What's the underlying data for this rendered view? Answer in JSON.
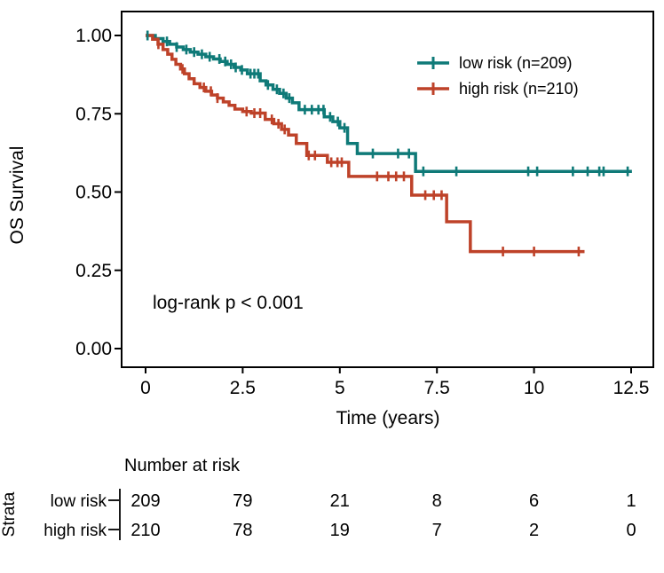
{
  "colors": {
    "low_risk": "#0F7A78",
    "high_risk": "#BE4229",
    "text": "#000000",
    "background": "#FFFFFF",
    "panel_border": "#000000"
  },
  "chart_data": {
    "type": "line",
    "subtype": "kaplan-meier-step",
    "title": "",
    "xlabel": "Time (years)",
    "ylabel": "OS Survival",
    "xlim": [
      0,
      12.5
    ],
    "ylim": [
      0,
      1
    ],
    "grid": false,
    "xticks": [
      0,
      2.5,
      5,
      7.5,
      10,
      12.5
    ],
    "xtick_labels": [
      "0",
      "2.5",
      "5",
      "7.5",
      "10",
      "12.5"
    ],
    "yticks": [
      0,
      0.25,
      0.5,
      0.75,
      1
    ],
    "ytick_labels": [
      "0.00",
      "0.25",
      "0.50",
      "0.75",
      "1.00"
    ],
    "annotation": "log-rank p < 0.001",
    "legend": {
      "position": "top-right",
      "entries": [
        {
          "label": "low risk (n=209)",
          "color": "#0F7A78"
        },
        {
          "label": "high risk (n=210)",
          "color": "#BE4229"
        }
      ]
    },
    "series": [
      {
        "name": "low risk (n=209)",
        "color": "#0F7A78",
        "steps": [
          [
            0,
            1.0
          ],
          [
            0.25,
            0.99
          ],
          [
            0.45,
            0.981
          ],
          [
            0.62,
            0.972
          ],
          [
            0.8,
            0.963
          ],
          [
            0.97,
            0.955
          ],
          [
            1.15,
            0.947
          ],
          [
            1.35,
            0.94
          ],
          [
            1.55,
            0.932
          ],
          [
            1.75,
            0.925
          ],
          [
            1.92,
            0.917
          ],
          [
            2.1,
            0.908
          ],
          [
            2.28,
            0.898
          ],
          [
            2.45,
            0.89
          ],
          [
            2.62,
            0.878
          ],
          [
            2.95,
            0.855
          ],
          [
            3.1,
            0.842
          ],
          [
            3.28,
            0.828
          ],
          [
            3.45,
            0.815
          ],
          [
            3.62,
            0.8
          ],
          [
            3.78,
            0.785
          ],
          [
            3.95,
            0.763
          ],
          [
            4.6,
            0.74
          ],
          [
            4.82,
            0.725
          ],
          [
            5.0,
            0.705
          ],
          [
            5.2,
            0.655
          ],
          [
            5.45,
            0.623
          ],
          [
            6.95,
            0.566
          ]
        ],
        "end_t": 12.52,
        "censors": [
          0.05,
          0.55,
          0.8,
          1.05,
          1.25,
          1.45,
          1.65,
          1.9,
          2.05,
          2.2,
          2.32,
          2.48,
          2.7,
          2.8,
          2.9,
          3.15,
          3.38,
          3.55,
          3.7,
          4.1,
          4.28,
          4.45,
          4.58,
          4.75,
          4.95,
          5.12,
          5.85,
          6.5,
          6.78,
          7.15,
          8.0,
          9.85,
          10.08,
          11.0,
          11.38,
          11.68,
          11.79,
          12.41
        ]
      },
      {
        "name": "high risk (n=210)",
        "color": "#BE4229",
        "steps": [
          [
            0,
            1.0
          ],
          [
            0.18,
            0.988
          ],
          [
            0.32,
            0.972
          ],
          [
            0.45,
            0.955
          ],
          [
            0.57,
            0.94
          ],
          [
            0.68,
            0.924
          ],
          [
            0.78,
            0.908
          ],
          [
            0.9,
            0.893
          ],
          [
            1.0,
            0.878
          ],
          [
            1.12,
            0.862
          ],
          [
            1.25,
            0.846
          ],
          [
            1.4,
            0.834
          ],
          [
            1.55,
            0.822
          ],
          [
            1.7,
            0.81
          ],
          [
            1.85,
            0.8
          ],
          [
            2.0,
            0.788
          ],
          [
            2.15,
            0.777
          ],
          [
            2.3,
            0.765
          ],
          [
            2.5,
            0.757
          ],
          [
            2.72,
            0.752
          ],
          [
            3.08,
            0.732
          ],
          [
            3.3,
            0.718
          ],
          [
            3.5,
            0.7
          ],
          [
            3.68,
            0.682
          ],
          [
            3.88,
            0.655
          ],
          [
            4.15,
            0.617
          ],
          [
            4.68,
            0.595
          ],
          [
            5.23,
            0.55
          ],
          [
            6.85,
            0.49
          ],
          [
            7.75,
            0.405
          ],
          [
            8.36,
            0.31
          ]
        ],
        "end_t": 11.3,
        "censors": [
          0.33,
          0.95,
          1.5,
          1.68,
          1.85,
          2.6,
          2.8,
          2.95,
          3.25,
          3.42,
          3.58,
          4.2,
          4.36,
          4.78,
          4.94,
          5.05,
          5.96,
          6.25,
          6.45,
          6.65,
          7.2,
          7.42,
          7.62,
          9.2,
          10.0,
          11.15
        ]
      }
    ],
    "risk_table": {
      "title": "Number at risk",
      "axis_label": "Strata",
      "times": [
        0,
        2.5,
        5,
        7.5,
        10,
        12.5
      ],
      "rows": [
        {
          "label": "low risk",
          "color": "#0F7A78",
          "values": [
            "209",
            "79",
            "21",
            "8",
            "6",
            "1"
          ]
        },
        {
          "label": "high risk",
          "color": "#BE4229",
          "values": [
            "210",
            "78",
            "19",
            "7",
            "2",
            "0"
          ]
        }
      ]
    }
  }
}
